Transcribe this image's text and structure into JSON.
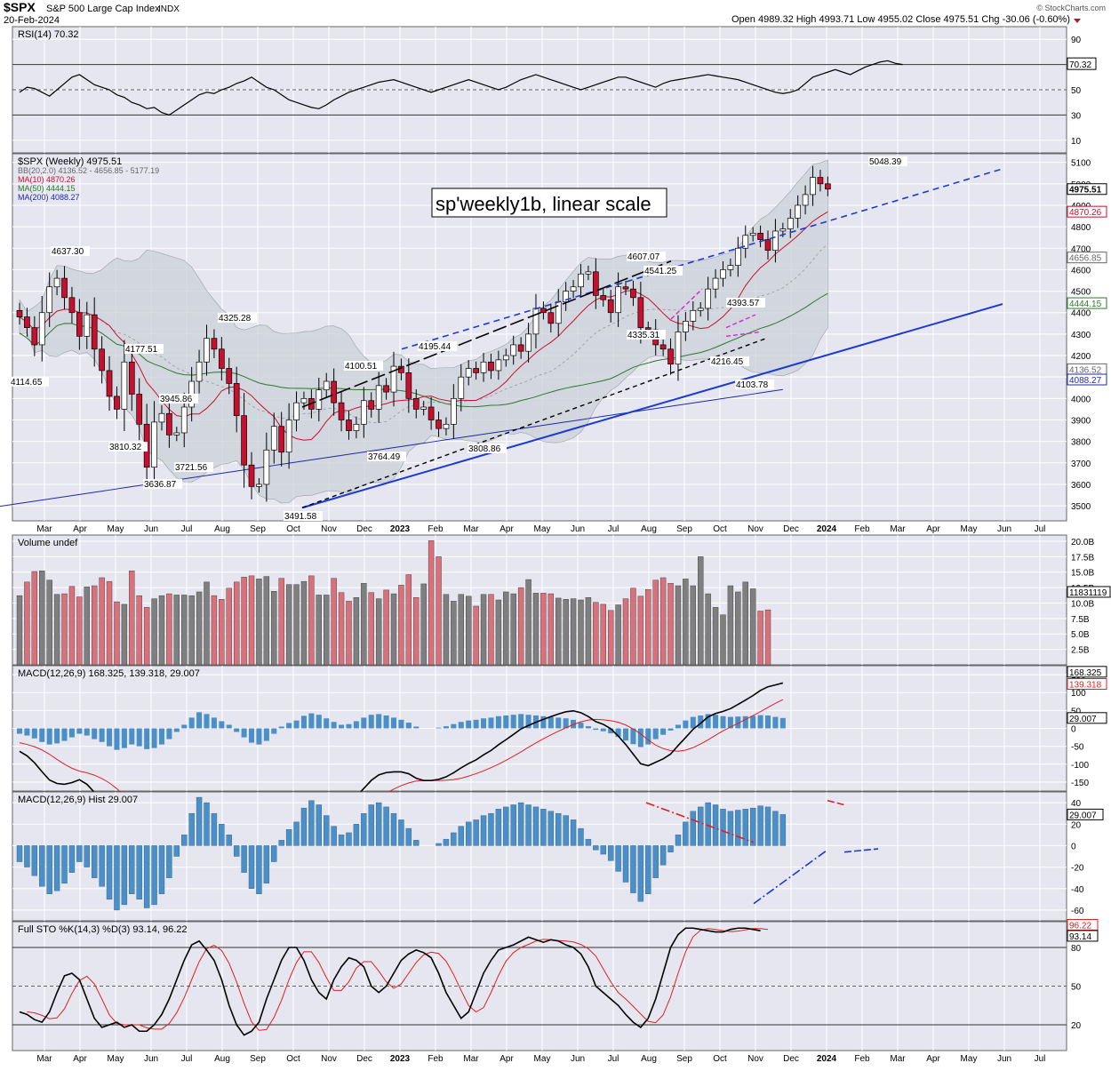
{
  "header": {
    "symbol": "$SPX",
    "name": "S&P 500 Large Cap Index",
    "exchange": "INDX",
    "date": "20-Feb-2024",
    "ohlc_text": "Open 4989.32  High 4993.71  Low 4955.02  Close 4975.51  Chg -30.06 (-0.60%)",
    "brand": "© StockCharts.com"
  },
  "colors": {
    "panel_bg": "#e6e6f0",
    "grid": "#ffffff",
    "up": "#ffffff",
    "down": "#c8102e",
    "vol_up": "#7f7f7f",
    "vol_down": "#d9707a",
    "bb_fill": "#c9ced6",
    "ma10": "#c8102e",
    "ma50": "#2a7a2a",
    "ma200": "#1e2aa8",
    "macd_line": "#000000",
    "signal_line": "#e0201e",
    "hist": "#4a8fc6",
    "channel": "#1a3ad6",
    "annot_red": "#e0201e",
    "annot_magenta": "#e020d6"
  },
  "chart_data": [
    {
      "type": "line",
      "panel": "rsi",
      "legend": [
        "RSI(14) 70.32"
      ],
      "ylim": [
        0,
        100
      ],
      "yticks": [
        "90",
        "70",
        "50",
        "30",
        "10"
      ],
      "reference_lines": [
        70,
        50,
        30
      ],
      "last_value": "70.32",
      "values": [
        48,
        52,
        51,
        48,
        45,
        50,
        55,
        60,
        62,
        58,
        54,
        52,
        50,
        46,
        44,
        40,
        38,
        35,
        36,
        32,
        30,
        34,
        38,
        42,
        46,
        48,
        47,
        50,
        52,
        55,
        57,
        60,
        56,
        52,
        50,
        46,
        42,
        40,
        38,
        36,
        35,
        38,
        42,
        45,
        48,
        50,
        52,
        54,
        56,
        57,
        58,
        56,
        54,
        52,
        50,
        48,
        50,
        52,
        54,
        56,
        58,
        56,
        54,
        52,
        50,
        52,
        55,
        58,
        60,
        62,
        60,
        58,
        56,
        54,
        52,
        50,
        52,
        54,
        56,
        58,
        60,
        60,
        58,
        56,
        54,
        52,
        55,
        57,
        58,
        59,
        60,
        61,
        62,
        61,
        60,
        59,
        58,
        56,
        54,
        52,
        50,
        48,
        47,
        48,
        50,
        55,
        60,
        62,
        64,
        66,
        64,
        62,
        65,
        68,
        70,
        72,
        73,
        71,
        70
      ]
    },
    {
      "type": "candlestick",
      "panel": "price",
      "legend": [
        "$SPX (Weekly) 4975.51",
        "BB(20,2.0) 4136.52 - 4656.85 - 5177.19",
        "MA(10) 4870.26",
        "MA(50) 4444.15",
        "MA(200) 4088.27"
      ],
      "ylim": [
        3430,
        5140
      ],
      "yticks": [
        "5100",
        "5000",
        "4900",
        "4800",
        "4700",
        "4600",
        "4500",
        "4400",
        "4300",
        "4200",
        "4100",
        "4000",
        "3900",
        "3800",
        "3700",
        "3600",
        "3500"
      ],
      "xlabels": [
        "Mar",
        "Apr",
        "May",
        "Jun",
        "Jul",
        "Aug",
        "Sep",
        "Oct",
        "Nov",
        "Dec",
        "2023",
        "Feb",
        "Mar",
        "Apr",
        "May",
        "Jun",
        "Jul",
        "Aug",
        "Sep",
        "Oct",
        "Nov",
        "Dec",
        "2024",
        "Feb",
        "Mar",
        "Apr",
        "May",
        "Jun",
        "Jul"
      ],
      "annotation_text": "sp'weekly1b, linear scale",
      "price_labels": [
        "5048.39",
        "4637.30",
        "4607.07",
        "4541.25",
        "4393.57",
        "4335.31",
        "4216.45",
        "4103.78",
        "4325.28",
        "4195.44",
        "4100.51",
        "4177.51",
        "4114.65",
        "3945.86",
        "3810.32",
        "3721.56",
        "3636.87",
        "3764.49",
        "3808.86",
        "3491.58"
      ],
      "right_labels": [
        "4975.51",
        "4870.26",
        "4656.85",
        "4444.15",
        "4136.52",
        "4088.27"
      ],
      "closes": [
        4380,
        4330,
        4250,
        4400,
        4520,
        4560,
        4470,
        4400,
        4290,
        4390,
        4230,
        4130,
        4010,
        3950,
        4170,
        4020,
        3880,
        3680,
        3890,
        3930,
        3830,
        3840,
        3960,
        4080,
        4170,
        4280,
        4230,
        4140,
        4070,
        3920,
        3690,
        3590,
        3600,
        3760,
        3870,
        3750,
        3900,
        3980,
        4000,
        3950,
        4040,
        4080,
        3980,
        3900,
        3850,
        3880,
        3990,
        3950,
        4060,
        4030,
        4150,
        4120,
        4000,
        3950,
        3960,
        3900,
        3860,
        3880,
        4000,
        4100,
        4140,
        4120,
        4170,
        4130,
        4180,
        4200,
        4250,
        4220,
        4300,
        4420,
        4400,
        4350,
        4450,
        4500,
        4520,
        4580,
        4590,
        4480,
        4460,
        4400,
        4520,
        4510,
        4470,
        4330,
        4320,
        4250,
        4230,
        4160,
        4310,
        4360,
        4410,
        4420,
        4510,
        4560,
        4600,
        4620,
        4700,
        4760,
        4770,
        4740,
        4690,
        4780,
        4790,
        4840,
        4900,
        4950,
        5030,
        5000,
        4975.51
      ]
    },
    {
      "type": "bar",
      "panel": "volume",
      "legend": [
        "Volume undef"
      ],
      "ylim": [
        0,
        21
      ],
      "yticks": [
        "20.0B",
        "17.5B",
        "15.0B",
        "12.5B",
        "10.0B",
        "7.5B",
        "5.0B",
        "2.5B"
      ],
      "last_value": "11831119",
      "values": [
        11.2,
        13.4,
        15.1,
        15.2,
        13.7,
        11.4,
        11.5,
        12.7,
        11.0,
        12.6,
        12.8,
        14.1,
        13.5,
        10.2,
        9.8,
        15.2,
        11.2,
        9.3,
        10.7,
        11.2,
        11.5,
        11.3,
        11.3,
        11.2,
        11.8,
        13.4,
        11.2,
        10.6,
        12.4,
        13.4,
        14.2,
        14.4,
        13.9,
        14.3,
        11.9,
        14.0,
        13.0,
        13.0,
        13.5,
        14.4,
        11.3,
        11.3,
        14.0,
        11.7,
        10.3,
        10.9,
        13.2,
        11.7,
        10.7,
        12.1,
        11.5,
        12.9,
        14.6,
        10.9,
        13.1,
        20.1,
        17.5,
        11.4,
        10.3,
        11.4,
        11.1,
        9.5,
        11.4,
        11.4,
        10.5,
        11.8,
        11.5,
        12.5,
        13.8,
        11.6,
        11.6,
        11.5,
        10.8,
        10.6,
        10.7,
        10.5,
        10.9,
        10.1,
        9.8,
        8.8,
        9.7,
        10.7,
        12.4,
        11.1,
        12.2,
        13.7,
        14.1,
        13.2,
        12.8,
        13.9,
        12.8,
        17.5,
        11.5,
        9.3,
        8.1,
        12.8,
        11.8,
        13.4,
        12.3,
        8.7,
        8.9
      ]
    },
    {
      "type": "line",
      "panel": "macd",
      "legend": [
        "MACD(12,26,9) 168.325, 139.318, 29.007"
      ],
      "ylim": [
        -175,
        175
      ],
      "yticks": [
        "150",
        "100",
        "50",
        "0",
        "-50",
        "-100",
        "-150"
      ],
      "right_labels": [
        "168.325",
        "139.318",
        "29.007"
      ]
    },
    {
      "type": "bar",
      "panel": "hist",
      "legend": [
        "MACD(12,26,9) Hist 29.007"
      ],
      "ylim": [
        -70,
        50
      ],
      "yticks": [
        "40",
        "20",
        "0",
        "-20",
        "-40",
        "-60"
      ],
      "last_value": "29.007",
      "values": [
        -15,
        -20,
        -28,
        -38,
        -45,
        -42,
        -35,
        -25,
        -15,
        -20,
        -30,
        -38,
        -50,
        -60,
        -55,
        -45,
        -50,
        -58,
        -55,
        -45,
        -30,
        -10,
        10,
        30,
        45,
        40,
        30,
        20,
        10,
        -10,
        -25,
        -40,
        -45,
        -35,
        -15,
        5,
        15,
        22,
        35,
        42,
        38,
        28,
        18,
        10,
        12,
        20,
        30,
        38,
        40,
        36,
        30,
        24,
        16,
        5,
        0,
        0,
        2,
        6,
        12,
        18,
        22,
        24,
        28,
        30,
        34,
        36,
        38,
        40,
        38,
        36,
        34,
        32,
        30,
        28,
        24,
        16,
        6,
        -4,
        -8,
        -14,
        -24,
        -34,
        -44,
        -52,
        -45,
        -30,
        -18,
        -6,
        10,
        22,
        32,
        36,
        40,
        38,
        34,
        32,
        33,
        34,
        35,
        37,
        36,
        32,
        29
      ]
    },
    {
      "type": "line",
      "panel": "sto",
      "legend": [
        "Full STO %K(14,3) %D(3) 93.14, 96.22"
      ],
      "ylim": [
        0,
        100
      ],
      "yticks": [
        "80",
        "50",
        "20"
      ],
      "reference_lines": [
        80,
        50,
        20
      ],
      "right_labels": [
        "96.22",
        "93.14"
      ],
      "values": [
        30,
        28,
        24,
        22,
        30,
        45,
        58,
        60,
        55,
        40,
        25,
        18,
        20,
        22,
        18,
        20,
        15,
        15,
        20,
        28,
        40,
        55,
        70,
        82,
        85,
        78,
        70,
        55,
        35,
        20,
        12,
        15,
        22,
        40,
        55,
        70,
        80,
        80,
        70,
        55,
        45,
        40,
        55,
        65,
        72,
        70,
        65,
        50,
        45,
        50,
        60,
        70,
        75,
        78,
        76,
        72,
        60,
        45,
        35,
        25,
        30,
        45,
        60,
        70,
        78,
        80,
        82,
        85,
        88,
        86,
        84,
        86,
        85,
        82,
        80,
        75,
        65,
        50,
        45,
        40,
        35,
        28,
        22,
        18,
        25,
        40,
        60,
        80,
        90,
        95,
        95,
        94,
        93,
        92,
        92,
        94,
        95,
        95,
        94,
        93
      ]
    }
  ]
}
